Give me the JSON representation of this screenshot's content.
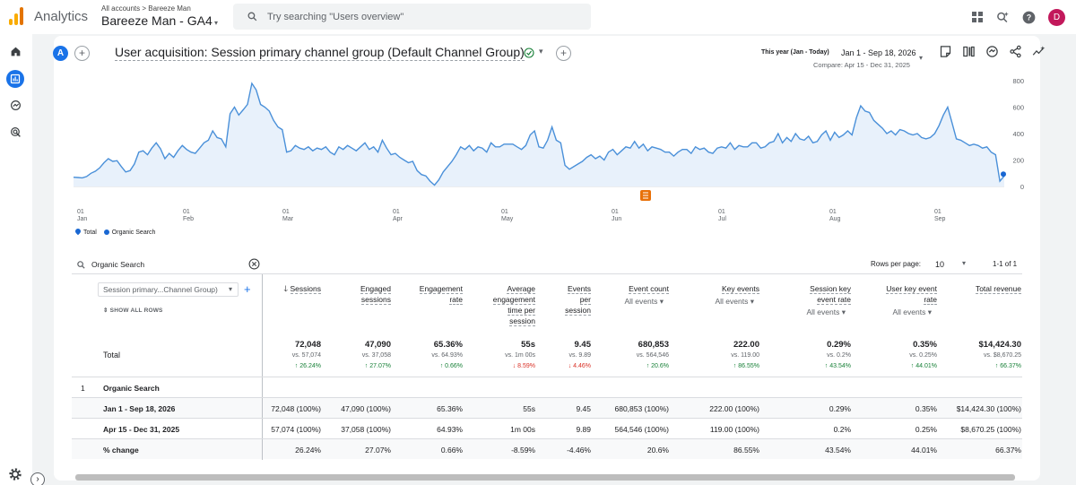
{
  "app": {
    "brand": "Analytics",
    "account_crumb": "All accounts > Bareeze Man",
    "property": "Bareeze Man - GA4",
    "search_placeholder": "Try searching \"Users overview\"",
    "avatar_letter": "D",
    "colors": {
      "accent": "#1a73e8",
      "line": "#4a90d9",
      "up": "#188038",
      "down": "#d93025",
      "annotation": "#e8710a"
    }
  },
  "header": {
    "avatar_letter": "A",
    "title": "User acquisition: Session primary channel group (Default Channel Group)",
    "date_label": "This year (Jan - Today)",
    "date_range": "Jan 1 - Sep 18, 2026",
    "compare": "Compare: Apr 15 - Dec 31, 2025"
  },
  "chart_data": {
    "type": "line",
    "y_ticks": [
      "800",
      "600",
      "400",
      "200",
      "0"
    ],
    "ylim": [
      0,
      800
    ],
    "x_ticks": [
      {
        "day": "01",
        "month": "Jan"
      },
      {
        "day": "01",
        "month": "Feb"
      },
      {
        "day": "01",
        "month": "Mar"
      },
      {
        "day": "01",
        "month": "Apr"
      },
      {
        "day": "01",
        "month": "May"
      },
      {
        "day": "01",
        "month": "Jun"
      },
      {
        "day": "01",
        "month": "Jul"
      },
      {
        "day": "01",
        "month": "Aug"
      },
      {
        "day": "01",
        "month": "Sep"
      }
    ],
    "series": [
      {
        "name": "Organic Search",
        "values": [
          70,
          68,
          65,
          75,
          100,
          115,
          140,
          180,
          210,
          190,
          195,
          150,
          110,
          120,
          170,
          260,
          270,
          240,
          290,
          330,
          285,
          210,
          250,
          220,
          270,
          310,
          280,
          260,
          250,
          290,
          330,
          350,
          420,
          370,
          360,
          300,
          550,
          600,
          540,
          580,
          620,
          780,
          730,
          620,
          600,
          570,
          500,
          450,
          430,
          260,
          270,
          310,
          290,
          280,
          300,
          270,
          290,
          280,
          300,
          260,
          240,
          300,
          280,
          310,
          290,
          270,
          300,
          330,
          280,
          300,
          260,
          350,
          290,
          240,
          250,
          220,
          200,
          180,
          190,
          120,
          90,
          80,
          40,
          10,
          50,
          110,
          150,
          190,
          240,
          300,
          280,
          310,
          270,
          300,
          290,
          260,
          330,
          300,
          300,
          320,
          320,
          320,
          300,
          280,
          310,
          390,
          420,
          300,
          290,
          350,
          450,
          350,
          330,
          160,
          130,
          150,
          170,
          190,
          220,
          240,
          210,
          230,
          200,
          260,
          280,
          240,
          270,
          300,
          290,
          340,
          290,
          320,
          270,
          300,
          290,
          280,
          260,
          260,
          230,
          260,
          280,
          280,
          250,
          300,
          280,
          290,
          260,
          250,
          290,
          300,
          290,
          330,
          280,
          310,
          300,
          300,
          330,
          330,
          290,
          300,
          330,
          340,
          400,
          330,
          370,
          340,
          400,
          360,
          350,
          380,
          330,
          340,
          390,
          420,
          350,
          410,
          370,
          390,
          420,
          390,
          520,
          610,
          570,
          560,
          500,
          470,
          440,
          400,
          420,
          390,
          430,
          420,
          400,
          390,
          400,
          370,
          360,
          370,
          400,
          460,
          540,
          600,
          480,
          360,
          350,
          330,
          310,
          320,
          310,
          290,
          300,
          260,
          240,
          40,
          80
        ]
      }
    ],
    "legend": [
      "Total",
      "Organic Search"
    ]
  },
  "table": {
    "search_value": "Organic Search",
    "rows_per_page_label": "Rows per page:",
    "rows_per_page": "10",
    "pagination": "1-1 of 1",
    "dimension_select": "Session primary...Channel Group)",
    "show_all_rows": "SHOW ALL ROWS",
    "total_label": "Total",
    "columns": [
      {
        "h": [
          "Sessions"
        ],
        "sub": "",
        "total": "72,048",
        "vs": "vs. 57,074",
        "chg": "26.24%",
        "dir": "up"
      },
      {
        "h": [
          "Engaged",
          "sessions"
        ],
        "sub": "",
        "total": "47,090",
        "vs": "vs. 37,058",
        "chg": "27.07%",
        "dir": "up"
      },
      {
        "h": [
          "Engagement",
          "rate"
        ],
        "sub": "",
        "total": "65.36%",
        "vs": "vs. 64.93%",
        "chg": "0.66%",
        "dir": "up"
      },
      {
        "h": [
          "Average",
          "engagement",
          "time per",
          "session"
        ],
        "sub": "",
        "total": "55s",
        "vs": "vs. 1m 00s",
        "chg": "8.59%",
        "dir": "down"
      },
      {
        "h": [
          "Events",
          "per",
          "session"
        ],
        "sub": "",
        "total": "9.45",
        "vs": "vs. 9.89",
        "chg": "4.46%",
        "dir": "down"
      },
      {
        "h": [
          "Event count"
        ],
        "sub": "All events",
        "total": "680,853",
        "vs": "vs. 564,546",
        "chg": "20.6%",
        "dir": "up"
      },
      {
        "h": [
          "Key events"
        ],
        "sub": "All events",
        "total": "222.00",
        "vs": "vs. 119.00",
        "chg": "86.55%",
        "dir": "up"
      },
      {
        "h": [
          "Session key",
          "event rate"
        ],
        "sub": "All events",
        "total": "0.29%",
        "vs": "vs. 0.2%",
        "chg": "43.54%",
        "dir": "up"
      },
      {
        "h": [
          "User key event",
          "rate"
        ],
        "sub": "All events",
        "total": "0.35%",
        "vs": "vs. 0.25%",
        "chg": "44.01%",
        "dir": "up"
      },
      {
        "h": [
          "Total revenue"
        ],
        "sub": "",
        "total": "$14,424.30",
        "vs": "vs. $8,670.25",
        "chg": "66.37%",
        "dir": "up"
      }
    ],
    "rows": [
      {
        "num": "1",
        "label": "Organic Search",
        "bold": true,
        "cells": []
      },
      {
        "num": "",
        "label": "Jan 1 - Sep 18, 2026",
        "bold": true,
        "cells": [
          "72,048 (100%)",
          "47,090 (100%)",
          "65.36%",
          "55s",
          "9.45",
          "680,853 (100%)",
          "222.00 (100%)",
          "0.29%",
          "0.35%",
          "$14,424.30 (100%)"
        ]
      },
      {
        "num": "",
        "label": "Apr 15 - Dec 31, 2025",
        "bold": true,
        "cells": [
          "57,074 (100%)",
          "37,058 (100%)",
          "64.93%",
          "1m 00s",
          "9.89",
          "564,546 (100%)",
          "119.00 (100%)",
          "0.2%",
          "0.25%",
          "$8,670.25 (100%)"
        ]
      },
      {
        "num": "",
        "label": "% change",
        "bold": true,
        "cells": [
          "26.24%",
          "27.07%",
          "0.66%",
          "-8.59%",
          "-4.46%",
          "20.6%",
          "86.55%",
          "43.54%",
          "44.01%",
          "66.37%"
        ]
      }
    ]
  }
}
